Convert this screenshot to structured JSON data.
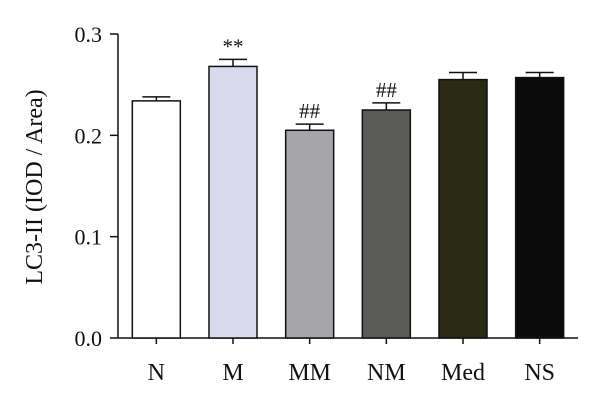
{
  "chart_data": {
    "type": "bar",
    "title": "",
    "xlabel": "",
    "ylabel": "LC3-II (IOD / Area)",
    "ylim": [
      0,
      0.3
    ],
    "yticks": [
      "0.0",
      "0.1",
      "0.2",
      "0.3"
    ],
    "grid": false,
    "categories": [
      "N",
      "M",
      "MM",
      "NM",
      "Med",
      "NS"
    ],
    "values": [
      0.234,
      0.268,
      0.205,
      0.225,
      0.255,
      0.257
    ],
    "errors": [
      0.004,
      0.007,
      0.006,
      0.007,
      0.007,
      0.005
    ],
    "annotations": [
      "",
      "**",
      "##",
      "##",
      "",
      ""
    ],
    "colors": [
      "#ffffff",
      "#d9d9ee",
      "#a6a6aa",
      "#5a5a56",
      "#2b2a14",
      "#0b0b0b"
    ]
  }
}
